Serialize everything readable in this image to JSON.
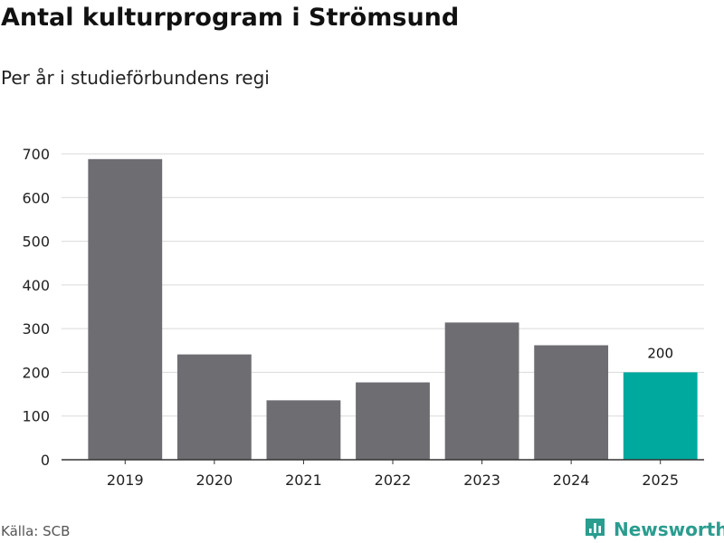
{
  "header": {
    "title": "Antal kulturprogram i Strömsund",
    "subtitle": "Per år i studieförbundens regi"
  },
  "footer": {
    "source": "Källa: SCB",
    "brand": "Newsworthy",
    "brand_color": "#2a9d8f"
  },
  "colors": {
    "bar": "#6d6d72",
    "highlight": "#00a99d",
    "grid": "#d9d9d9",
    "axis": "#333333"
  },
  "chart_data": {
    "type": "bar",
    "categories": [
      "2019",
      "2020",
      "2021",
      "2022",
      "2023",
      "2024",
      "2025"
    ],
    "values": [
      688,
      241,
      136,
      177,
      314,
      262,
      200
    ],
    "highlight_index": 6,
    "data_labels": [
      {
        "index": 6,
        "text": "200"
      }
    ],
    "ylim": [
      0,
      700
    ],
    "yticks": [
      0,
      100,
      200,
      300,
      400,
      500,
      600,
      700
    ],
    "grid": true,
    "legend": "none",
    "xlabel": "",
    "ylabel": ""
  }
}
